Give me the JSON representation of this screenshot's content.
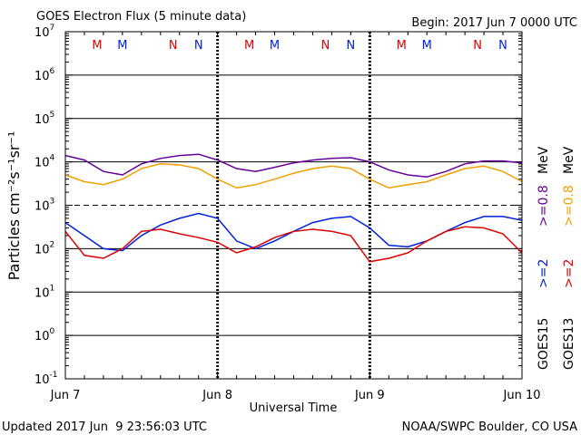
{
  "chart_data": {
    "type": "line",
    "title": "GOES Electron Flux (5 minute data)",
    "subtitle": "Begin: 2017 Jun 7 0000 UTC",
    "xlabel": "Universal Time",
    "ylabel": "Particles cm⁻²s⁻¹sr⁻¹",
    "footer_left": "Updated 2017 Jun  9 23:56:03 UTC",
    "footer_right": "NOAA/SWPC Boulder, CO USA",
    "log_y": true,
    "xlim": [
      0,
      72
    ],
    "xticks": [
      {
        "value": 0,
        "label": "Jun 7"
      },
      {
        "value": 24,
        "label": "Jun 8"
      },
      {
        "value": 48,
        "label": "Jun 9"
      },
      {
        "value": 72,
        "label": "Jun 10"
      }
    ],
    "ylim": [
      0.1,
      10000000
    ],
    "yticks": [
      {
        "value": 0.1,
        "label": "10",
        "exponent": "-1"
      },
      {
        "value": 1,
        "label": "10",
        "exponent": "0"
      },
      {
        "value": 10,
        "label": "10",
        "exponent": "1"
      },
      {
        "value": 100,
        "label": "10",
        "exponent": "2"
      },
      {
        "value": 1000,
        "label": "10",
        "exponent": "3"
      },
      {
        "value": 10000,
        "label": "10",
        "exponent": "4"
      },
      {
        "value": 100000,
        "label": "10",
        "exponent": "5"
      },
      {
        "value": 1000000,
        "label": "10",
        "exponent": "6"
      },
      {
        "value": 10000000,
        "label": "10",
        "exponent": "7"
      }
    ],
    "grid": true,
    "threshold": 1000,
    "x": [
      0,
      3,
      6,
      9,
      12,
      15,
      18,
      21,
      24,
      27,
      30,
      33,
      36,
      39,
      42,
      45,
      48,
      51,
      54,
      57,
      60,
      63,
      66,
      69,
      72
    ],
    "series": [
      {
        "name": ">=0.8",
        "satellite": 0,
        "color": "#660099",
        "values": [
          14000,
          11000,
          6000,
          5000,
          9000,
          12000,
          14000,
          15000,
          11000,
          7000,
          6000,
          7500,
          9500,
          11000,
          12000,
          12500,
          10000,
          6500,
          5000,
          4500,
          6000,
          9000,
          10500,
          10500,
          9500
        ]
      },
      {
        "name": ">=0.8",
        "satellite": 1,
        "color": "#f0a000",
        "values": [
          5000,
          3500,
          3000,
          4000,
          7000,
          9000,
          8500,
          7000,
          4000,
          2500,
          3000,
          4000,
          5500,
          7000,
          8000,
          7000,
          4000,
          2500,
          3000,
          3500,
          5000,
          7000,
          8000,
          6000,
          3500
        ]
      },
      {
        "name": ">=2",
        "satellite": 0,
        "color": "#0022dd",
        "values": [
          400,
          200,
          100,
          90,
          200,
          350,
          500,
          650,
          500,
          150,
          100,
          150,
          250,
          400,
          500,
          550,
          300,
          120,
          110,
          150,
          250,
          400,
          550,
          550,
          450
        ]
      },
      {
        "name": ">=2",
        "satellite": 1,
        "color": "#dd0000",
        "values": [
          250,
          70,
          60,
          100,
          250,
          280,
          220,
          180,
          140,
          80,
          110,
          180,
          250,
          280,
          250,
          200,
          50,
          60,
          80,
          150,
          250,
          320,
          300,
          220,
          80
        ]
      }
    ],
    "legend_groups": [
      {
        "label": "GOES15",
        "unit": "MeV"
      },
      {
        "label": "GOES13",
        "unit": "MeV"
      }
    ],
    "markers": [
      {
        "x": 5,
        "label": "M",
        "color": "#dd0000"
      },
      {
        "x": 9,
        "label": "M",
        "color": "#0022dd"
      },
      {
        "x": 17,
        "label": "N",
        "color": "#dd0000"
      },
      {
        "x": 21,
        "label": "N",
        "color": "#0022dd"
      },
      {
        "x": 29,
        "label": "M",
        "color": "#dd0000"
      },
      {
        "x": 33,
        "label": "M",
        "color": "#0022dd"
      },
      {
        "x": 41,
        "label": "N",
        "color": "#dd0000"
      },
      {
        "x": 45,
        "label": "N",
        "color": "#0022dd"
      },
      {
        "x": 53,
        "label": "M",
        "color": "#dd0000"
      },
      {
        "x": 57,
        "label": "M",
        "color": "#0022dd"
      },
      {
        "x": 65,
        "label": "N",
        "color": "#dd0000"
      },
      {
        "x": 69,
        "label": "N",
        "color": "#0022dd"
      }
    ]
  }
}
